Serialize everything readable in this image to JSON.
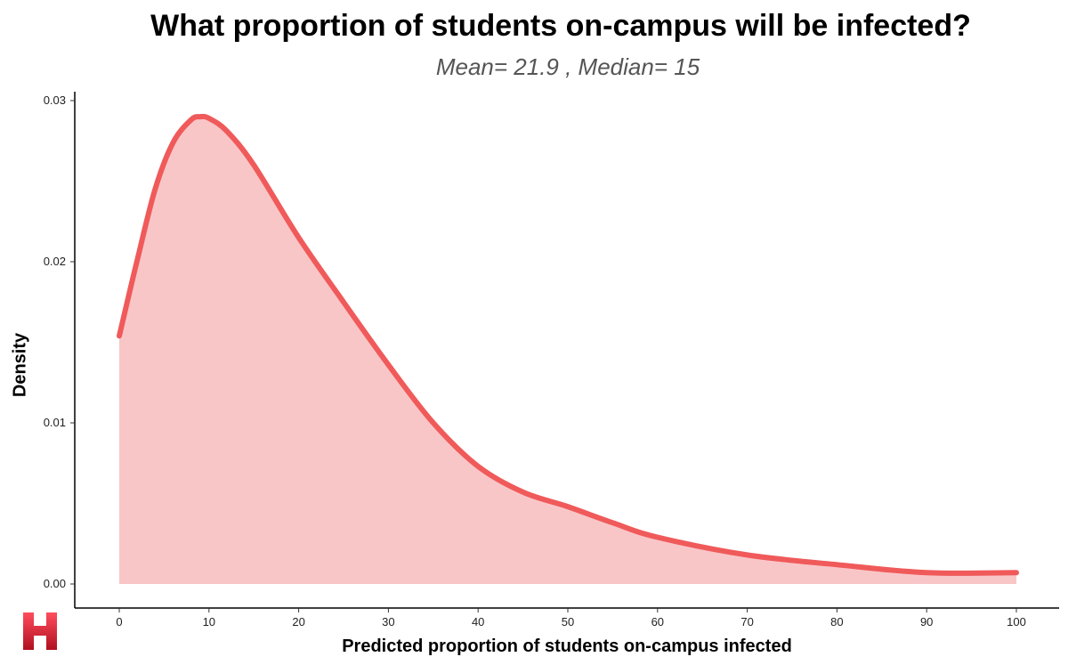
{
  "chart_data": {
    "type": "area",
    "title": "What proportion of students on-campus will be infected?",
    "subtitle": "Mean= 21.9 , Median= 15",
    "xlabel": "Predicted proportion of students on-campus infected",
    "ylabel": "Density",
    "xlim": [
      0,
      100
    ],
    "ylim": [
      0,
      0.03
    ],
    "xticks": [
      "0",
      "10",
      "20",
      "30",
      "40",
      "50",
      "60",
      "70",
      "80",
      "90",
      "100"
    ],
    "yticks": [
      "0.00",
      "0.01",
      "0.02",
      "0.03"
    ],
    "grid": false,
    "line_color": "#f05a5a",
    "fill_color": "#f9c6c8",
    "x": [
      0,
      2,
      4,
      6,
      8,
      9,
      10,
      12,
      15,
      20,
      25,
      30,
      35,
      40,
      45,
      50,
      55,
      60,
      70,
      80,
      90,
      100
    ],
    "y": [
      0.0154,
      0.0201,
      0.0245,
      0.0274,
      0.0288,
      0.029,
      0.0289,
      0.0281,
      0.026,
      0.0215,
      0.0175,
      0.0136,
      0.01,
      0.0073,
      0.0057,
      0.0048,
      0.0038,
      0.0029,
      0.0018,
      0.0012,
      0.0007,
      0.0007
    ]
  },
  "logo": {
    "letter": "H",
    "name": "h-logo-icon"
  }
}
